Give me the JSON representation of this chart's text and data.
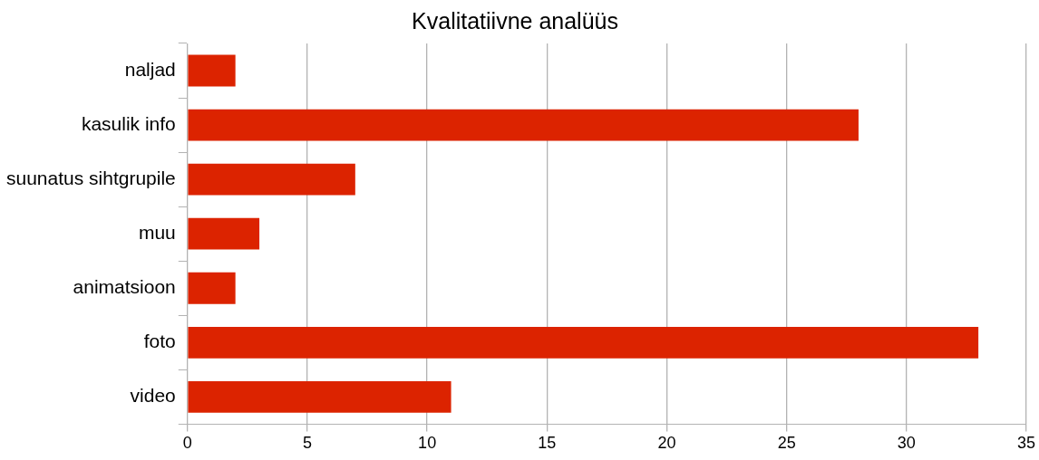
{
  "chart_data": {
    "type": "bar",
    "orientation": "horizontal",
    "title": "Kvalitatiivne analüüs",
    "categories": [
      "naljad",
      "kasulik info",
      "suunatus sihtgrupile",
      "muu",
      "animatsioon",
      "foto",
      "video"
    ],
    "values": [
      2,
      28,
      7,
      3,
      2,
      33,
      11
    ],
    "color": "#dc2300",
    "xlim": [
      0,
      35
    ],
    "xticks": [
      0,
      5,
      10,
      15,
      20,
      25,
      30,
      35
    ],
    "grid": "x",
    "legend": false
  }
}
